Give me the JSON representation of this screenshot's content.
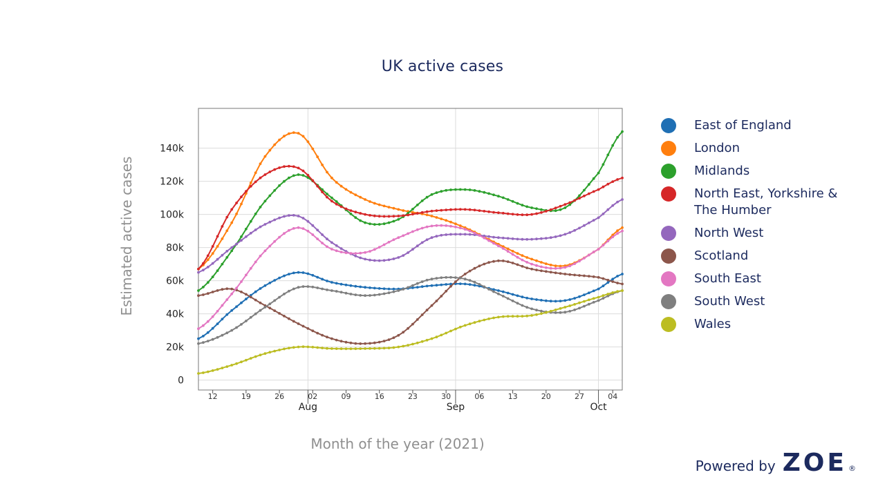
{
  "title": "UK active cases",
  "powered_by": {
    "text": "Powered by",
    "brand": "ZOE",
    "mark": "®"
  },
  "chart_data": {
    "type": "line",
    "title": "UK active cases",
    "xlabel": "Month of the year (2021)",
    "ylabel": "Estimated active cases",
    "xlim": [
      "2021-07-09",
      "2021-10-06"
    ],
    "ylim": [
      -6000,
      164000
    ],
    "x_tick_labels": [
      "12",
      "19",
      "26",
      "02",
      "09",
      "16",
      "23",
      "30",
      "06",
      "13",
      "20",
      "27",
      "04"
    ],
    "x_month_labels": [
      "Aug",
      "Sep",
      "Oct"
    ],
    "y_tick_labels": [
      "0",
      "20k",
      "40k",
      "60k",
      "80k",
      "100k",
      "120k",
      "140k"
    ],
    "grid": true,
    "legend_position": "right",
    "x": [
      "2021-07-09",
      "2021-07-16",
      "2021-07-23",
      "2021-07-30",
      "2021-08-06",
      "2021-08-13",
      "2021-08-20",
      "2021-08-27",
      "2021-09-03",
      "2021-09-10",
      "2021-09-17",
      "2021-09-24",
      "2021-10-01",
      "2021-10-06"
    ],
    "series": [
      {
        "name": "East of England",
        "color": "#1f6fb4",
        "values": [
          25000,
          42000,
          57000,
          65000,
          59000,
          56000,
          55000,
          57000,
          58000,
          54000,
          49000,
          48000,
          55000,
          64000
        ]
      },
      {
        "name": "London",
        "color": "#ff7f0e",
        "values": [
          67000,
          95000,
          135000,
          149000,
          122000,
          109000,
          103000,
          99000,
          92000,
          82000,
          73000,
          69000,
          79000,
          92000
        ]
      },
      {
        "name": "Midlands",
        "color": "#2ca02c",
        "values": [
          54000,
          78000,
          108000,
          124000,
          110000,
          95000,
          97000,
          112000,
          115000,
          111000,
          104000,
          104000,
          125000,
          150000
        ]
      },
      {
        "name": "North East, Yorkshire & The Humber",
        "color": "#d62728",
        "values": [
          67000,
          103000,
          124000,
          128000,
          108000,
          100000,
          99000,
          102000,
          103000,
          101000,
          100000,
          106000,
          115000,
          122000
        ]
      },
      {
        "name": "North West",
        "color": "#9467bd",
        "values": [
          65000,
          80000,
          94000,
          99000,
          83000,
          73000,
          74000,
          86000,
          88000,
          86000,
          85000,
          88000,
          98000,
          109000
        ]
      },
      {
        "name": "Scotland",
        "color": "#8c564b",
        "values": [
          51000,
          55000,
          45000,
          34000,
          25000,
          22000,
          27000,
          45000,
          64000,
          72000,
          67000,
          64000,
          62000,
          58000
        ]
      },
      {
        "name": "South East",
        "color": "#e377c2",
        "values": [
          31000,
          52000,
          78000,
          92000,
          79000,
          77000,
          86000,
          93000,
          91000,
          81000,
          70000,
          68000,
          79000,
          90000
        ]
      },
      {
        "name": "South West",
        "color": "#7f7f7f",
        "values": [
          22000,
          30000,
          44000,
          56000,
          54000,
          51000,
          54000,
          61000,
          61000,
          52000,
          43000,
          41000,
          48000,
          54000
        ]
      },
      {
        "name": "Wales",
        "color": "#bcbd22",
        "values": [
          4000,
          9000,
          16000,
          20000,
          19000,
          19000,
          20000,
          25000,
          33000,
          38000,
          39000,
          44000,
          50000,
          54000
        ]
      }
    ]
  }
}
